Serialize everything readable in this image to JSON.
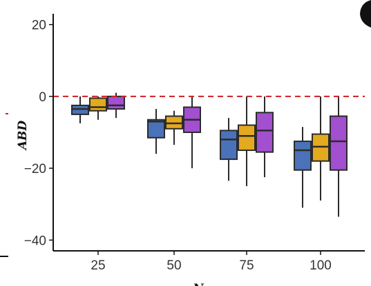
{
  "chart_data": {
    "type": "box",
    "title": "",
    "xlabel": "N",
    "ylabel": "ABD",
    "categories": [
      "25",
      "50",
      "75",
      "100"
    ],
    "ylim": [
      -43,
      23
    ],
    "yticks": [
      20,
      0,
      -20,
      -40
    ],
    "ytick_labels": [
      "20",
      "0",
      "−20",
      "−40"
    ],
    "reference_line": {
      "y": 0,
      "style": "dashed",
      "color": "#cc1f24"
    },
    "grid": false,
    "legend": "none",
    "series": [
      {
        "color": "#4a72b8",
        "boxes": [
          {
            "category": "25",
            "whisker_low": -7.5,
            "q1": -5,
            "median": -3.5,
            "q3": -2.5,
            "whisker_high": 0
          },
          {
            "category": "50",
            "whisker_low": -16,
            "q1": -11.5,
            "median": -7,
            "q3": -6.5,
            "whisker_high": -3.5
          },
          {
            "category": "75",
            "whisker_low": -23.5,
            "q1": -17.5,
            "median": -12,
            "q3": -9.5,
            "whisker_high": -6
          },
          {
            "category": "100",
            "whisker_low": -31,
            "q1": -20.5,
            "median": -15,
            "q3": -12.5,
            "whisker_high": -8.5
          }
        ]
      },
      {
        "color": "#e3a91f",
        "boxes": [
          {
            "category": "25",
            "whisker_low": -6.5,
            "q1": -4,
            "median": -3,
            "q3": -0.5,
            "whisker_high": 0
          },
          {
            "category": "50",
            "whisker_low": -13.5,
            "q1": -9,
            "median": -7.5,
            "q3": -5.5,
            "whisker_high": -4
          },
          {
            "category": "75",
            "whisker_low": -25,
            "q1": -15,
            "median": -11,
            "q3": -8,
            "whisker_high": 0
          },
          {
            "category": "100",
            "whisker_low": -29,
            "q1": -18,
            "median": -14,
            "q3": -10.5,
            "whisker_high": 0
          }
        ]
      },
      {
        "color": "#a24fd0",
        "boxes": [
          {
            "category": "25",
            "whisker_low": -6,
            "q1": -3.5,
            "median": -2.5,
            "q3": 0,
            "whisker_high": 1
          },
          {
            "category": "50",
            "whisker_low": -20,
            "q1": -10,
            "median": -6.5,
            "q3": -3,
            "whisker_high": 0
          },
          {
            "category": "75",
            "whisker_low": -22.5,
            "q1": -15.5,
            "median": -9.5,
            "q3": -4.5,
            "whisker_high": 0
          },
          {
            "category": "100",
            "whisker_low": -33.5,
            "q1": -20.5,
            "median": -12.5,
            "q3": -5.5,
            "whisker_high": 0
          }
        ]
      }
    ]
  }
}
